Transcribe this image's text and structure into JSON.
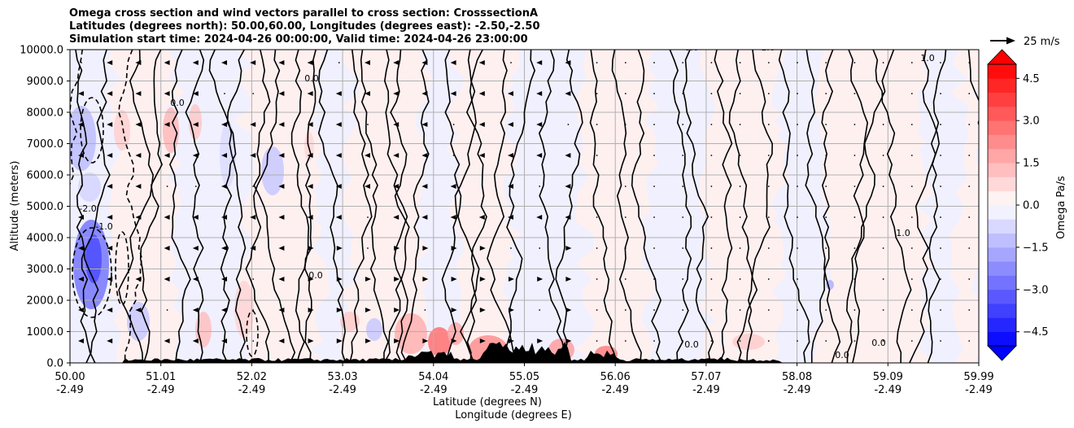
{
  "chart_data": {
    "type": "heatmap",
    "title_lines": [
      "Omega cross section and wind vectors parallel to cross section: CrosssectionA",
      "Latitudes (degrees north): 50.00,60.00, Longitudes (degrees east): -2.50,-2.50",
      "Simulation start time: 2024-04-26 00:00:00, Valid time: 2024-04-26 23:00:00"
    ],
    "ylabel": "Altitude (meters)",
    "xlabel_lat": "Latitude (degrees N)",
    "xlabel_lon": "Longitude (degrees E)",
    "ylim": [
      0,
      10000
    ],
    "xlim": [
      50.0,
      59.99
    ],
    "yticks": [
      0,
      1000,
      2000,
      3000,
      4000,
      5000,
      6000,
      7000,
      8000,
      9000,
      10000
    ],
    "ytick_labels": [
      "0.0",
      "1000.0",
      "2000.0",
      "3000.0",
      "4000.0",
      "5000.0",
      "6000.0",
      "7000.0",
      "8000.0",
      "9000.0",
      "10000.0"
    ],
    "xticks": [
      {
        "lat": "50.00",
        "lon": "-2.49"
      },
      {
        "lat": "51.01",
        "lon": "-2.49"
      },
      {
        "lat": "52.02",
        "lon": "-2.49"
      },
      {
        "lat": "53.03",
        "lon": "-2.49"
      },
      {
        "lat": "54.04",
        "lon": "-2.49"
      },
      {
        "lat": "55.05",
        "lon": "-2.49"
      },
      {
        "lat": "56.06",
        "lon": "-2.49"
      },
      {
        "lat": "57.07",
        "lon": "-2.49"
      },
      {
        "lat": "58.08",
        "lon": "-2.49"
      },
      {
        "lat": "59.09",
        "lon": "-2.49"
      },
      {
        "lat": "59.99",
        "lon": "-2.49"
      }
    ],
    "colorbar": {
      "label": "Omega Pa/s",
      "range": [
        -5.0,
        5.0
      ],
      "ticks": [
        4.5,
        3.0,
        1.5,
        0.0,
        -1.5,
        -3.0,
        -4.5
      ],
      "tick_labels": [
        "4.5",
        "3.0",
        "1.5",
        "0.0",
        "−1.5",
        "−3.0",
        "−4.5"
      ],
      "levels": 20,
      "extend": "both",
      "cmap": "bwr"
    },
    "vector_key": "25 m/s",
    "contour_labels": [
      "0.0",
      "0.0",
      "0.0",
      "0.0",
      "-1.0",
      "-1.0",
      "-2.0",
      "1.0",
      "1.0",
      "0.0",
      "0.0",
      "0.0"
    ]
  },
  "colors": {
    "positive_light": "#fff0f0",
    "negative_light": "#f0f0ff",
    "positive_strong": "#ff0000",
    "negative_strong": "#0000ff",
    "terrain": "#000000",
    "grid": "#b0b0b0"
  }
}
